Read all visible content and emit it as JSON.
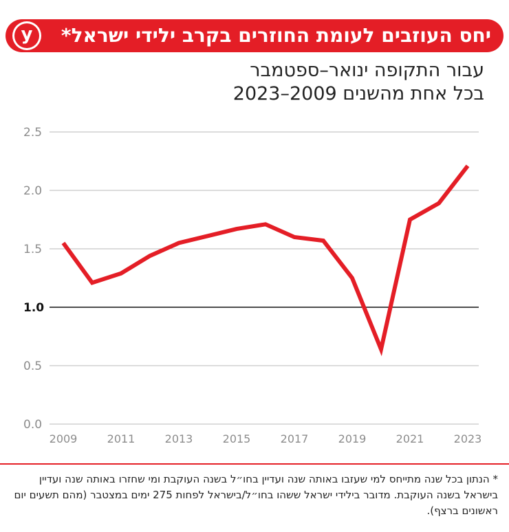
{
  "header": {
    "logo_letter": "y",
    "title": "יחס העוזבים לעומת החוזרים בקרב ילידי ישראל*"
  },
  "subtitle": {
    "line1": "עבור התקופה ינואר–ספטמבר",
    "line2": "בכל אחת מהשנים 2009–2023"
  },
  "footnote": "* הנתון בכל שנה מתייחס למי שעזבו באותה שנה ועדיין בחו״ל בשנה העוקבת ומי שחזרו באותה שנה ועדיין בישראל בשנה העוקבת. מדובר בילידי ישראל ששהו בחו״ל/בישראל לפחות 275 ימים במצטבר (מהם תשעים יום ראשונים ברצף).",
  "colors": {
    "accent": "#e41e26",
    "grid": "#b8b8b8",
    "reference": "#111111",
    "tick": "#8c8c8c"
  },
  "chart_data": {
    "type": "line",
    "x": [
      2009,
      2010,
      2011,
      2012,
      2013,
      2014,
      2015,
      2016,
      2017,
      2018,
      2019,
      2020,
      2021,
      2022,
      2023
    ],
    "series": [
      {
        "values": [
          1.55,
          1.21,
          1.29,
          1.44,
          1.55,
          1.61,
          1.67,
          1.71,
          1.6,
          1.57,
          1.25,
          0.64,
          1.75,
          1.89,
          2.21
        ]
      }
    ],
    "xticks": [
      2009,
      2011,
      2013,
      2015,
      2017,
      2019,
      2021,
      2023
    ],
    "yticks": [
      "0.0",
      "0.5",
      "1.0",
      "1.5",
      "2.0",
      "2.5"
    ],
    "ylim": [
      0,
      2.5
    ],
    "xlim": [
      2009,
      2023
    ],
    "reference_line": 1.0,
    "grid": true,
    "legend": "none"
  }
}
